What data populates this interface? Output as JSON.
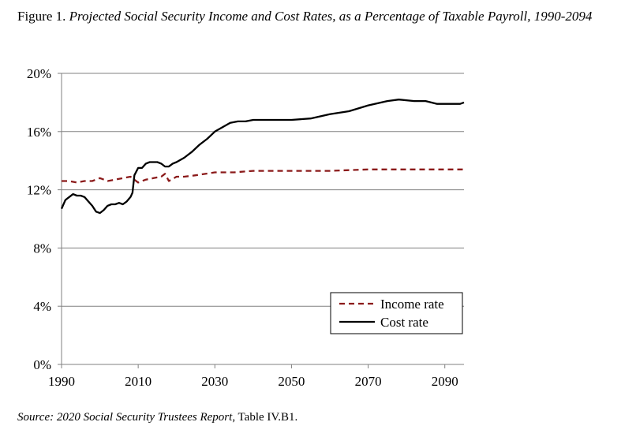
{
  "figure": {
    "label": "Figure 1.",
    "title": "Projected Social Security Income and Cost Rates, as a Percentage of Taxable Payroll, 1990-2094",
    "source_label": "Source: 2020 Social Security Trustees Report",
    "source_rest": ", Table IV.B1."
  },
  "chart_data": {
    "type": "line",
    "title": "Projected Social Security Income and Cost Rates, as a Percentage of Taxable Payroll, 1990-2094",
    "xlabel": "",
    "ylabel": "",
    "xlim": [
      1990,
      2095
    ],
    "ylim": [
      0,
      20
    ],
    "x_ticks": [
      1990,
      2010,
      2030,
      2050,
      2070,
      2090
    ],
    "x_tick_labels": [
      "1990",
      "2010",
      "2030",
      "2050",
      "2070",
      "2090"
    ],
    "y_ticks": [
      0,
      4,
      8,
      12,
      16,
      20
    ],
    "y_tick_labels": [
      "0%",
      "4%",
      "8%",
      "12%",
      "16%",
      "20%"
    ],
    "grid": "horizontal",
    "legend_position": "bottom-right",
    "series": [
      {
        "name": "Income rate",
        "color": "#8b1a1a",
        "dash": "dashed",
        "x": [
          1990,
          1992,
          1994,
          1996,
          1998,
          2000,
          2002,
          2004,
          2006,
          2008,
          2010,
          2012,
          2014,
          2016,
          2017,
          2018,
          2020,
          2022,
          2025,
          2030,
          2035,
          2040,
          2050,
          2060,
          2070,
          2080,
          2090,
          2095
        ],
        "values": [
          12.6,
          12.6,
          12.5,
          12.6,
          12.6,
          12.8,
          12.6,
          12.7,
          12.8,
          12.9,
          12.5,
          12.7,
          12.8,
          12.9,
          13.1,
          12.6,
          12.9,
          12.9,
          13.0,
          13.2,
          13.2,
          13.3,
          13.3,
          13.3,
          13.4,
          13.4,
          13.4,
          13.4
        ]
      },
      {
        "name": "Cost rate",
        "color": "#000000",
        "dash": "solid",
        "x": [
          1990,
          1991,
          1992,
          1993,
          1994,
          1995,
          1996,
          1997,
          1998,
          1999,
          2000,
          2001,
          2002,
          2003,
          2004,
          2005,
          2006,
          2007,
          2008,
          2008.5,
          2009,
          2010,
          2011,
          2012,
          2013,
          2014,
          2015,
          2016,
          2017,
          2018,
          2019,
          2020,
          2022,
          2024,
          2026,
          2028,
          2030,
          2032,
          2034,
          2036,
          2038,
          2040,
          2045,
          2050,
          2055,
          2060,
          2065,
          2070,
          2075,
          2078,
          2082,
          2085,
          2088,
          2090,
          2094,
          2095
        ],
        "values": [
          10.7,
          11.3,
          11.5,
          11.7,
          11.6,
          11.6,
          11.5,
          11.2,
          10.9,
          10.5,
          10.4,
          10.6,
          10.9,
          11.0,
          11.0,
          11.1,
          11.0,
          11.2,
          11.5,
          11.8,
          13.0,
          13.5,
          13.5,
          13.8,
          13.9,
          13.9,
          13.9,
          13.8,
          13.6,
          13.6,
          13.8,
          13.9,
          14.2,
          14.6,
          15.1,
          15.5,
          16.0,
          16.3,
          16.6,
          16.7,
          16.7,
          16.8,
          16.8,
          16.8,
          16.9,
          17.2,
          17.4,
          17.8,
          18.1,
          18.2,
          18.1,
          18.1,
          17.9,
          17.9,
          17.9,
          18.0
        ]
      }
    ]
  }
}
